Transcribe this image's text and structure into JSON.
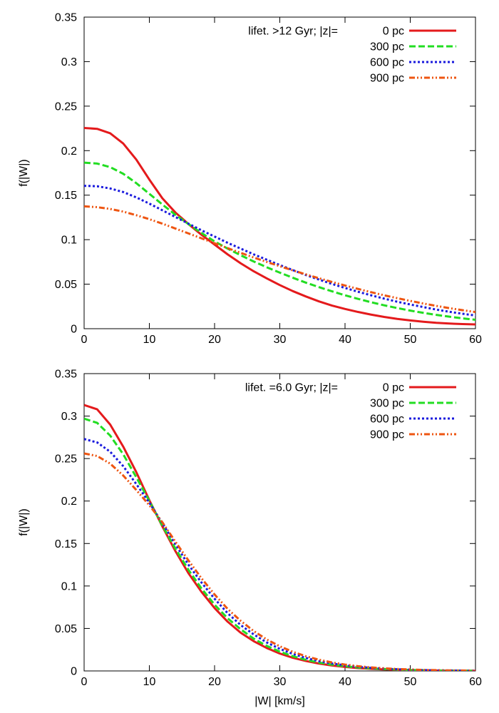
{
  "chart_data": [
    {
      "type": "line",
      "title": "",
      "xlabel": "",
      "ylabel": "f(|W|)",
      "xlim": [
        0,
        60
      ],
      "ylim": [
        0,
        0.35
      ],
      "xticks": [
        "0",
        "10",
        "20",
        "30",
        "40",
        "50",
        "60"
      ],
      "yticks": [
        "0",
        "0.05",
        "0.1",
        "0.15",
        "0.2",
        "0.25",
        "0.3",
        "0.35"
      ],
      "grid": false,
      "legend_placement": "top-right",
      "legend_header": "lifet. >12 Gyr;   |z|=",
      "series": [
        {
          "name": "0 pc",
          "color": "#e41a1c",
          "dash": "solid",
          "x": [
            0,
            2,
            4,
            6,
            8,
            10,
            12,
            14,
            16,
            18,
            20,
            22,
            24,
            26,
            28,
            30,
            32,
            34,
            36,
            38,
            40,
            42,
            44,
            46,
            48,
            50,
            52,
            54,
            56,
            58,
            60
          ],
          "y": [
            0.2255,
            0.2245,
            0.2195,
            0.208,
            0.19,
            0.1675,
            0.1465,
            0.1305,
            0.1175,
            0.1055,
            0.0945,
            0.0835,
            0.0735,
            0.0645,
            0.0565,
            0.049,
            0.0422,
            0.0362,
            0.0307,
            0.026,
            0.0222,
            0.0188,
            0.0158,
            0.0132,
            0.011,
            0.0093,
            0.0078,
            0.0066,
            0.0058,
            0.0052,
            0.0048
          ]
        },
        {
          "name": "300 pc",
          "color": "#22dd22",
          "dash": "dashed",
          "x": [
            0,
            2,
            4,
            6,
            8,
            10,
            12,
            14,
            16,
            18,
            20,
            22,
            24,
            26,
            28,
            30,
            32,
            34,
            36,
            38,
            40,
            42,
            44,
            46,
            48,
            50,
            52,
            54,
            56,
            58,
            60
          ],
          "y": [
            0.1865,
            0.1855,
            0.1815,
            0.174,
            0.1635,
            0.1515,
            0.1395,
            0.128,
            0.1175,
            0.1075,
            0.098,
            0.09,
            0.0825,
            0.0755,
            0.069,
            0.063,
            0.0572,
            0.0517,
            0.0467,
            0.042,
            0.0375,
            0.0335,
            0.0297,
            0.0263,
            0.0232,
            0.0203,
            0.0178,
            0.0155,
            0.0135,
            0.0116,
            0.01
          ]
        },
        {
          "name": "600 pc",
          "color": "#1a1add",
          "dash": "dotted",
          "x": [
            0,
            2,
            4,
            6,
            8,
            10,
            12,
            14,
            16,
            18,
            20,
            22,
            24,
            26,
            28,
            30,
            32,
            34,
            36,
            38,
            40,
            42,
            44,
            46,
            48,
            50,
            52,
            54,
            56,
            58,
            60
          ],
          "y": [
            0.1605,
            0.16,
            0.1575,
            0.1535,
            0.1475,
            0.1405,
            0.133,
            0.1255,
            0.118,
            0.1105,
            0.1035,
            0.0965,
            0.09,
            0.0835,
            0.0775,
            0.0715,
            0.0658,
            0.0603,
            0.0552,
            0.0503,
            0.0458,
            0.0415,
            0.0375,
            0.0338,
            0.0303,
            0.0272,
            0.0243,
            0.0215,
            0.019,
            0.0168,
            0.0148
          ]
        },
        {
          "name": "900 pc",
          "color": "#ee5511",
          "dash": "dash-dot",
          "x": [
            0,
            2,
            4,
            6,
            8,
            10,
            12,
            14,
            16,
            18,
            20,
            22,
            24,
            26,
            28,
            30,
            32,
            34,
            36,
            38,
            40,
            42,
            44,
            46,
            48,
            50,
            52,
            54,
            56,
            58,
            60
          ],
          "y": [
            0.1375,
            0.1365,
            0.1345,
            0.1315,
            0.1275,
            0.123,
            0.118,
            0.1125,
            0.107,
            0.1015,
            0.096,
            0.0905,
            0.0852,
            0.08,
            0.075,
            0.0702,
            0.0655,
            0.061,
            0.0567,
            0.0525,
            0.0485,
            0.0447,
            0.041,
            0.0375,
            0.0343,
            0.0312,
            0.0283,
            0.0256,
            0.0231,
            0.0208,
            0.0187
          ]
        }
      ]
    },
    {
      "type": "line",
      "title": "",
      "xlabel": "|W| [km/s]",
      "ylabel": "f(|W|)",
      "xlim": [
        0,
        60
      ],
      "ylim": [
        0,
        0.35
      ],
      "xticks": [
        "0",
        "10",
        "20",
        "30",
        "40",
        "50",
        "60"
      ],
      "yticks": [
        "0",
        "0.05",
        "0.1",
        "0.15",
        "0.2",
        "0.25",
        "0.3",
        "0.35"
      ],
      "grid": false,
      "legend_placement": "top-right",
      "legend_header": "lifet. =6.0 Gyr;   |z|=",
      "series": [
        {
          "name": "0 pc",
          "color": "#e41a1c",
          "dash": "solid",
          "x": [
            0,
            2,
            4,
            6,
            8,
            10,
            12,
            14,
            16,
            18,
            20,
            22,
            24,
            26,
            28,
            30,
            32,
            34,
            36,
            38,
            40,
            42,
            44,
            46,
            48,
            50,
            52,
            54,
            56,
            58,
            60
          ],
          "y": [
            0.313,
            0.308,
            0.29,
            0.264,
            0.234,
            0.201,
            0.17,
            0.141,
            0.115,
            0.093,
            0.074,
            0.058,
            0.045,
            0.035,
            0.027,
            0.0205,
            0.0155,
            0.0117,
            0.0087,
            0.0064,
            0.0047,
            0.0034,
            0.0025,
            0.0018,
            0.0013,
            0.0009,
            0.0006,
            0.0004,
            0.0003,
            0.0002,
            0.0001
          ]
        },
        {
          "name": "300 pc",
          "color": "#22dd22",
          "dash": "dashed",
          "x": [
            0,
            2,
            4,
            6,
            8,
            10,
            12,
            14,
            16,
            18,
            20,
            22,
            24,
            26,
            28,
            30,
            32,
            34,
            36,
            38,
            40,
            42,
            44,
            46,
            48,
            50,
            52,
            54,
            56,
            58,
            60
          ],
          "y": [
            0.297,
            0.292,
            0.277,
            0.255,
            0.228,
            0.2,
            0.171,
            0.144,
            0.119,
            0.097,
            0.078,
            0.062,
            0.049,
            0.038,
            0.0295,
            0.0227,
            0.0173,
            0.0131,
            0.0099,
            0.0074,
            0.0055,
            0.004,
            0.003,
            0.0022,
            0.0016,
            0.0011,
            0.0008,
            0.0006,
            0.0004,
            0.0003,
            0.0002
          ]
        },
        {
          "name": "600 pc",
          "color": "#1a1add",
          "dash": "dotted",
          "x": [
            0,
            2,
            4,
            6,
            8,
            10,
            12,
            14,
            16,
            18,
            20,
            22,
            24,
            26,
            28,
            30,
            32,
            34,
            36,
            38,
            40,
            42,
            44,
            46,
            48,
            50,
            52,
            54,
            56,
            58,
            60
          ],
          "y": [
            0.273,
            0.269,
            0.258,
            0.241,
            0.22,
            0.198,
            0.174,
            0.149,
            0.125,
            0.104,
            0.085,
            0.068,
            0.054,
            0.043,
            0.0335,
            0.026,
            0.02,
            0.0153,
            0.0116,
            0.0088,
            0.0066,
            0.0049,
            0.0036,
            0.0027,
            0.002,
            0.0014,
            0.001,
            0.0007,
            0.0005,
            0.0004,
            0.0003
          ]
        },
        {
          "name": "900 pc",
          "color": "#ee5511",
          "dash": "dash-dot",
          "x": [
            0,
            2,
            4,
            6,
            8,
            10,
            12,
            14,
            16,
            18,
            20,
            22,
            24,
            26,
            28,
            30,
            32,
            34,
            36,
            38,
            40,
            42,
            44,
            46,
            48,
            50,
            52,
            54,
            56,
            58,
            60
          ],
          "y": [
            0.256,
            0.253,
            0.244,
            0.23,
            0.213,
            0.195,
            0.175,
            0.152,
            0.13,
            0.109,
            0.09,
            0.073,
            0.059,
            0.047,
            0.037,
            0.029,
            0.0225,
            0.0173,
            0.0132,
            0.01,
            0.0075,
            0.0056,
            0.0042,
            0.0031,
            0.0023,
            0.0017,
            0.0012,
            0.0009,
            0.0006,
            0.0005,
            0.0003
          ]
        }
      ]
    }
  ]
}
